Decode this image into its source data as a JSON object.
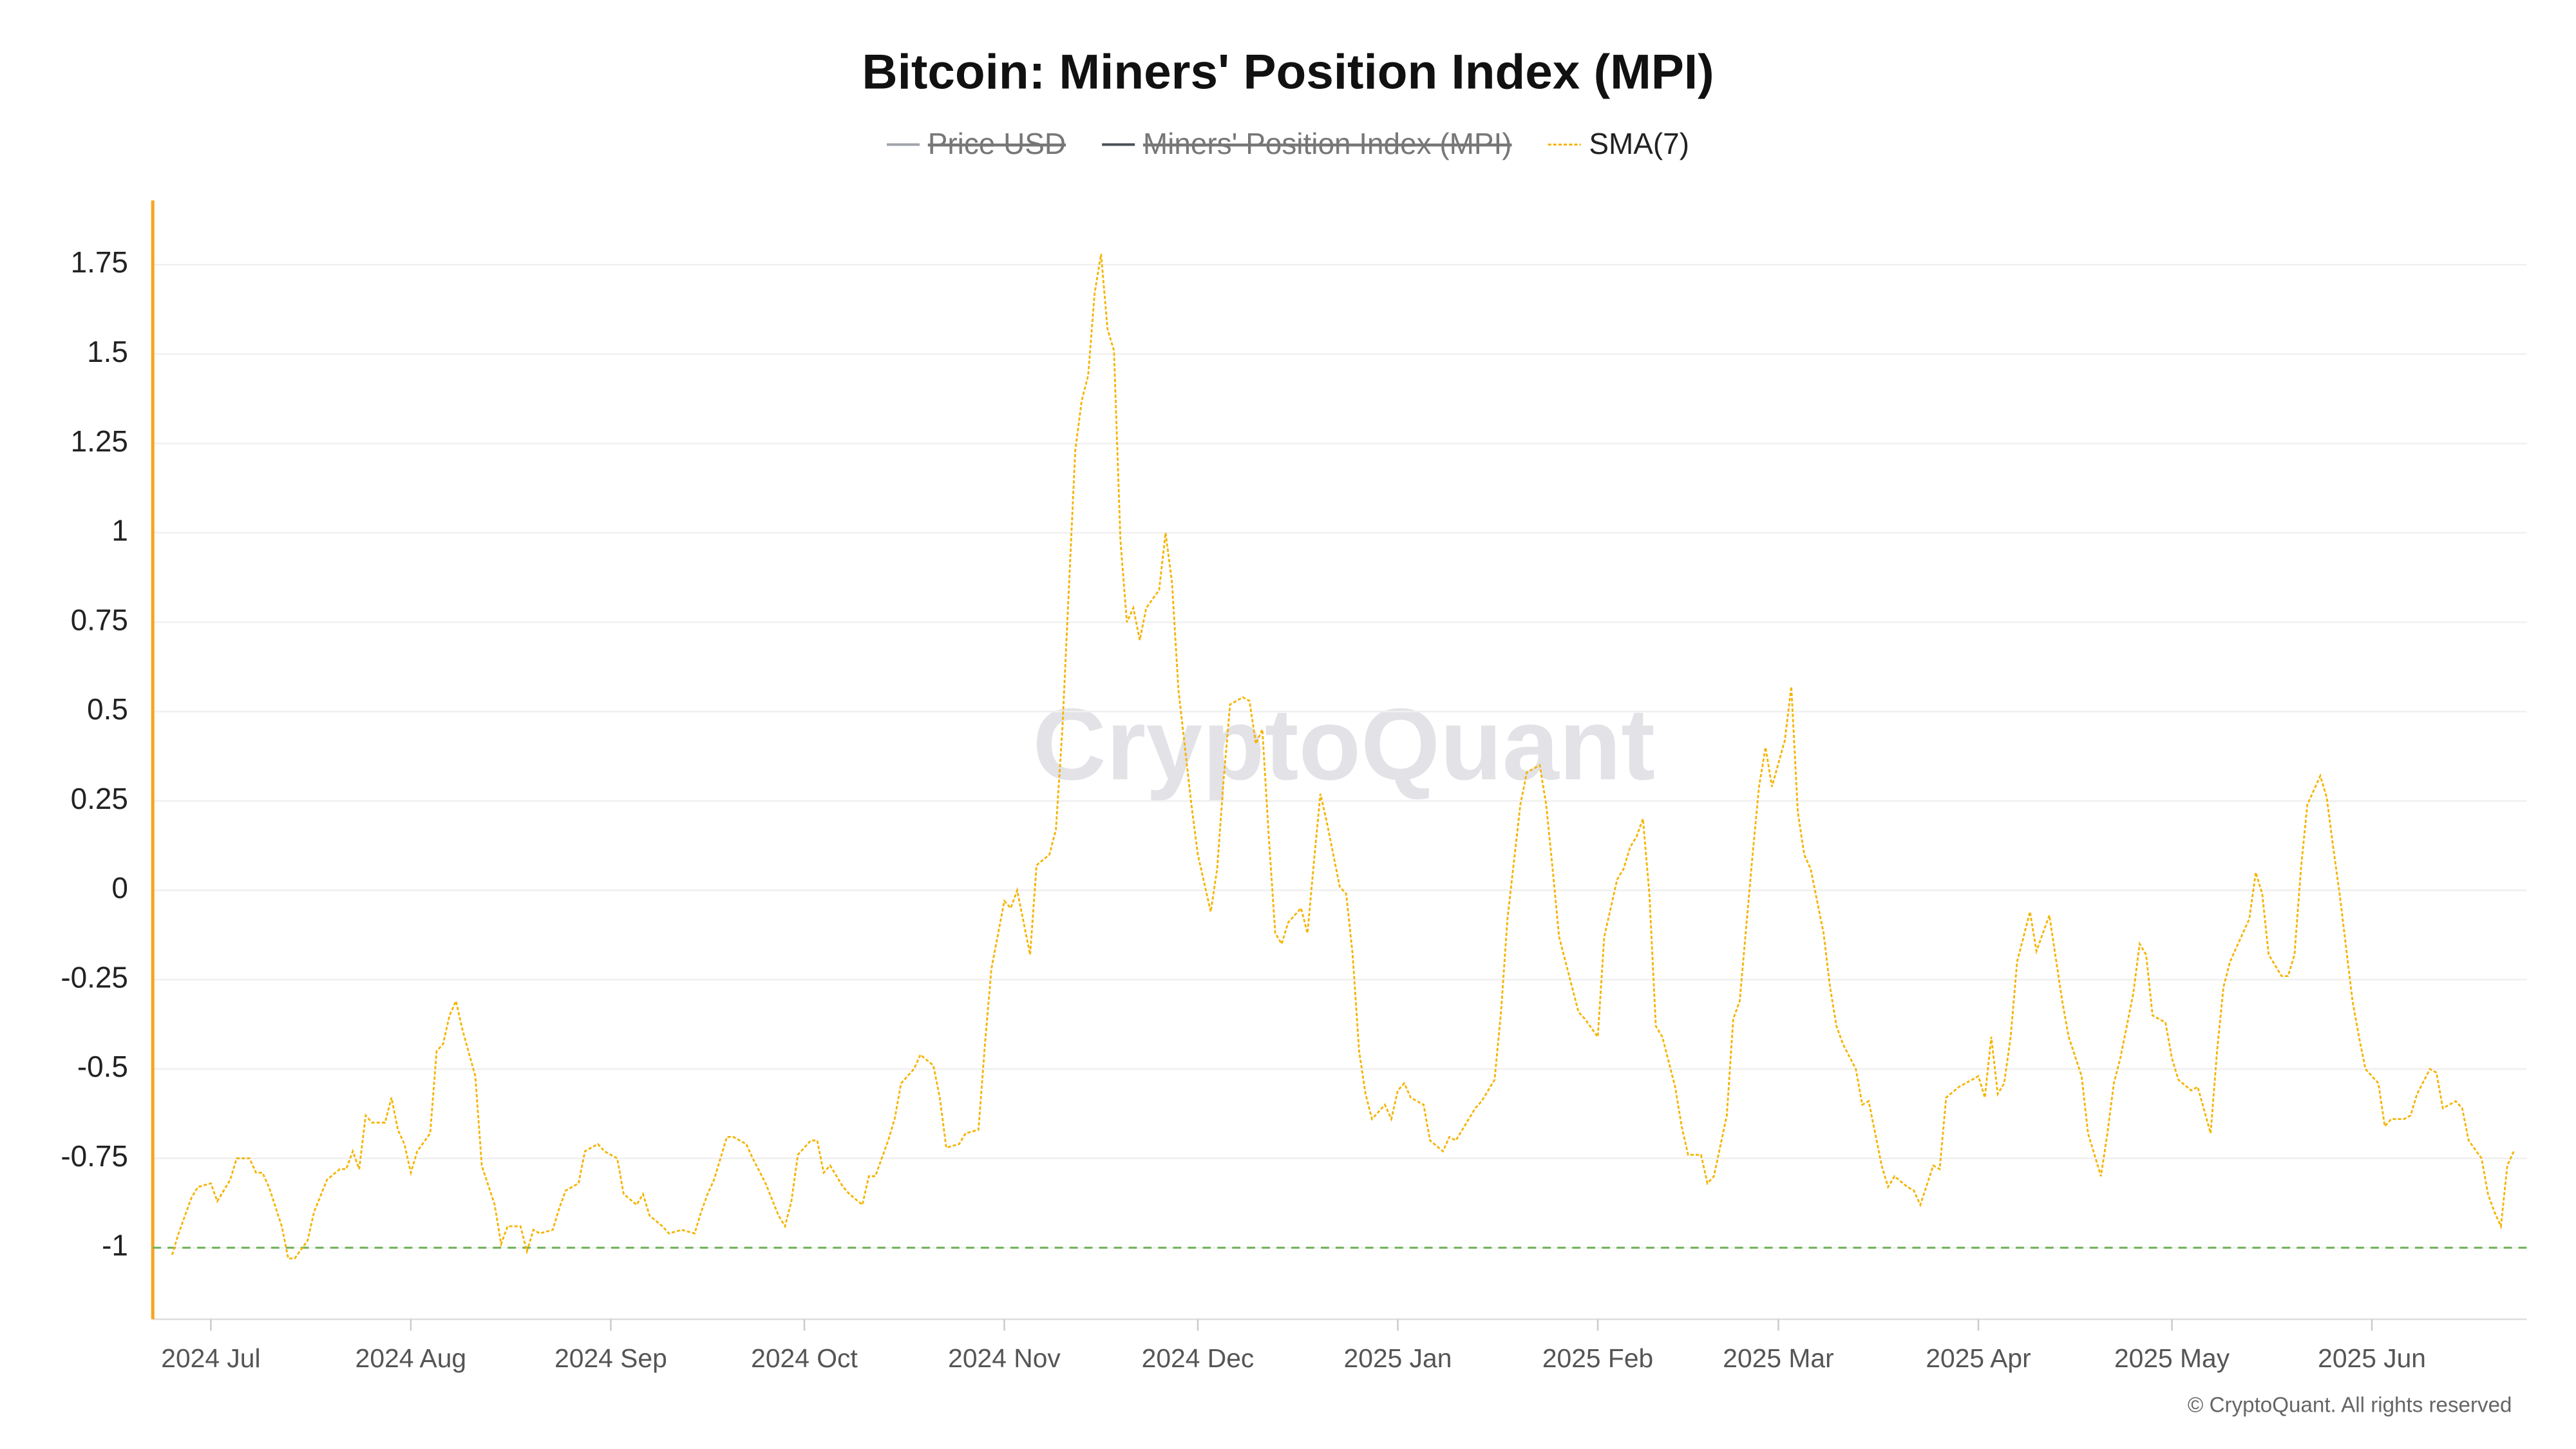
{
  "chart_data": {
    "type": "line",
    "title": "Bitcoin: Miners' Position Index (MPI)",
    "watermark": "CryptoQuant",
    "footer": "© CryptoQuant. All rights reserved",
    "x": [
      -6,
      -5,
      -4,
      -3,
      -2,
      0,
      1,
      3,
      4,
      6,
      7,
      8,
      9,
      11,
      12,
      13,
      15,
      16,
      18,
      20,
      21,
      22,
      23,
      24,
      25,
      27,
      28,
      29,
      30,
      31,
      32,
      34,
      35,
      36,
      37,
      38,
      39,
      41,
      42,
      44,
      45,
      46,
      48,
      49,
      50,
      51,
      53,
      54,
      55,
      57,
      58,
      60,
      61,
      63,
      64,
      66,
      67,
      68,
      70,
      71,
      73,
      75,
      76,
      77,
      78,
      80,
      81,
      83,
      84,
      86,
      88,
      89,
      90,
      91,
      93,
      94,
      95,
      96,
      98,
      99,
      101,
      102,
      103,
      105,
      106,
      107,
      109,
      110,
      112,
      113,
      114,
      116,
      117,
      119,
      120,
      121,
      123,
      124,
      125,
      127,
      128,
      130,
      131,
      132,
      134,
      135,
      136,
      137,
      138,
      139,
      140,
      141,
      142,
      143,
      144,
      145,
      147,
      148,
      149,
      150,
      152,
      153,
      155,
      156,
      157,
      158,
      160,
      161,
      162,
      163,
      164,
      165,
      166,
      167,
      169,
      170,
      171,
      172,
      173,
      175,
      176,
      177,
      178,
      179,
      180,
      182,
      183,
      184,
      185,
      186,
      188,
      189,
      191,
      192,
      193,
      195,
      196,
      197,
      199,
      200,
      201,
      203,
      204,
      206,
      207,
      208,
      209,
      211,
      212,
      213,
      215,
      216,
      218,
      219,
      220,
      221,
      222,
      223,
      224,
      225,
      227,
      228,
      229,
      231,
      232,
      233,
      235,
      236,
      237,
      239,
      240,
      241,
      242,
      244,
      245,
      246,
      247,
      248,
      250,
      251,
      252,
      253,
      255,
      256,
      257,
      259,
      260,
      261,
      263,
      264,
      265,
      267,
      268,
      269,
      271,
      272,
      274,
      275,
      276,
      277,
      278,
      279,
      280,
      282,
      283,
      284,
      285,
      287,
      288,
      290,
      291,
      293,
      294,
      295,
      296,
      298,
      299,
      300,
      301,
      303,
      304,
      305,
      307,
      308,
      310,
      311,
      312,
      313,
      315,
      316,
      317,
      318,
      319,
      321,
      322,
      323,
      324,
      325,
      327,
      328,
      329,
      330,
      332,
      333,
      334,
      336,
      337,
      338,
      340,
      341,
      342,
      344,
      345,
      346,
      348,
      349,
      350,
      352,
      353,
      354,
      355,
      356,
      357
    ],
    "series": [
      {
        "name": "Price USD",
        "color": "#a0a4ab",
        "hidden": true
      },
      {
        "name": "Miners' Position Index (MPI)",
        "color": "#4a4f57",
        "hidden": true
      },
      {
        "name": "SMA(7)",
        "color": "#f5b400",
        "line_style": "dotted",
        "hidden": false,
        "values": [
          -1.02,
          -0.96,
          -0.91,
          -0.86,
          -0.83,
          -0.82,
          -0.87,
          -0.81,
          -0.75,
          -0.75,
          -0.79,
          -0.79,
          -0.83,
          -0.94,
          -1.03,
          -1.03,
          -0.98,
          -0.9,
          -0.81,
          -0.78,
          -0.78,
          -0.73,
          -0.78,
          -0.63,
          -0.65,
          -0.65,
          -0.58,
          -0.67,
          -0.71,
          -0.79,
          -0.73,
          -0.68,
          -0.45,
          -0.43,
          -0.35,
          -0.31,
          -0.39,
          -0.52,
          -0.77,
          -0.88,
          -0.99,
          -0.94,
          -0.94,
          -1.01,
          -0.95,
          -0.96,
          -0.95,
          -0.89,
          -0.84,
          -0.82,
          -0.73,
          -0.71,
          -0.73,
          -0.75,
          -0.85,
          -0.88,
          -0.85,
          -0.91,
          -0.94,
          -0.96,
          -0.95,
          -0.96,
          -0.9,
          -0.85,
          -0.81,
          -0.69,
          -0.69,
          -0.71,
          -0.75,
          -0.82,
          -0.91,
          -0.94,
          -0.87,
          -0.74,
          -0.7,
          -0.7,
          -0.79,
          -0.77,
          -0.83,
          -0.85,
          -0.88,
          -0.8,
          -0.8,
          -0.7,
          -0.64,
          -0.54,
          -0.5,
          -0.46,
          -0.49,
          -0.58,
          -0.72,
          -0.71,
          -0.68,
          -0.67,
          -0.43,
          -0.22,
          -0.03,
          -0.05,
          0.0,
          -0.18,
          0.07,
          0.1,
          0.17,
          0.45,
          1.23,
          1.37,
          1.44,
          1.67,
          1.78,
          1.57,
          1.51,
          0.98,
          0.75,
          0.79,
          0.7,
          0.79,
          0.84,
          1.0,
          0.86,
          0.56,
          0.24,
          0.1,
          -0.06,
          0.06,
          0.31,
          0.52,
          0.54,
          0.53,
          0.41,
          0.45,
          0.15,
          -0.12,
          -0.15,
          -0.09,
          -0.05,
          -0.12,
          0.08,
          0.27,
          0.19,
          0.01,
          -0.01,
          -0.18,
          -0.45,
          -0.57,
          -0.64,
          -0.6,
          -0.64,
          -0.56,
          -0.54,
          -0.58,
          -0.6,
          -0.7,
          -0.73,
          -0.69,
          -0.7,
          -0.64,
          -0.61,
          -0.59,
          -0.53,
          -0.34,
          -0.08,
          0.24,
          0.33,
          0.35,
          0.24,
          0.06,
          -0.13,
          -0.27,
          -0.34,
          -0.36,
          -0.41,
          -0.13,
          0.03,
          0.06,
          0.12,
          0.15,
          0.2,
          -0.01,
          -0.38,
          -0.41,
          -0.55,
          -0.66,
          -0.74,
          -0.74,
          -0.82,
          -0.8,
          -0.63,
          -0.36,
          -0.31,
          0.1,
          0.29,
          0.4,
          0.29,
          0.42,
          0.57,
          0.22,
          0.1,
          0.06,
          -0.12,
          -0.27,
          -0.38,
          -0.43,
          -0.5,
          -0.6,
          -0.59,
          -0.77,
          -0.83,
          -0.8,
          -0.83,
          -0.84,
          -0.88,
          -0.77,
          -0.78,
          -0.58,
          -0.55,
          -0.54,
          -0.52,
          -0.58,
          -0.41,
          -0.57,
          -0.54,
          -0.41,
          -0.2,
          -0.06,
          -0.17,
          -0.12,
          -0.07,
          -0.31,
          -0.41,
          -0.52,
          -0.68,
          -0.8,
          -0.68,
          -0.54,
          -0.47,
          -0.29,
          -0.15,
          -0.18,
          -0.35,
          -0.37,
          -0.47,
          -0.53,
          -0.56,
          -0.55,
          -0.68,
          -0.45,
          -0.27,
          -0.2,
          -0.12,
          -0.08,
          0.05,
          -0.01,
          -0.18,
          -0.24,
          -0.24,
          -0.18,
          0.06,
          0.24,
          0.32,
          0.26,
          0.12,
          -0.01,
          -0.31,
          -0.41,
          -0.5,
          -0.54,
          -0.66,
          -0.64,
          -0.64,
          -0.63,
          -0.57,
          -0.5,
          -0.51,
          -0.61,
          -0.59,
          -0.61,
          -0.7,
          -0.75,
          -0.85,
          -0.9,
          -0.94,
          -0.77,
          -0.73
        ]
      }
    ],
    "xlim": [
      -9,
      359
    ],
    "xticks": [
      {
        "value": 0,
        "label": "2024 Jul"
      },
      {
        "value": 31,
        "label": "2024 Aug"
      },
      {
        "value": 62,
        "label": "2024 Sep"
      },
      {
        "value": 92,
        "label": "2024 Oct"
      },
      {
        "value": 123,
        "label": "2024 Nov"
      },
      {
        "value": 153,
        "label": "2024 Dec"
      },
      {
        "value": 184,
        "label": "2025 Jan"
      },
      {
        "value": 215,
        "label": "2025 Feb"
      },
      {
        "value": 243,
        "label": "2025 Mar"
      },
      {
        "value": 274,
        "label": "2025 Apr"
      },
      {
        "value": 304,
        "label": "2025 May"
      },
      {
        "value": 335,
        "label": "2025 Jun"
      }
    ],
    "ylim": [
      -1.2,
      1.93
    ],
    "yticks": [
      -1,
      -0.75,
      -0.5,
      -0.25,
      0,
      0.25,
      0.5,
      0.75,
      1,
      1.25,
      1.5,
      1.75
    ],
    "grid": true,
    "y_axis_color": "#f5a623",
    "reference_lines": [
      {
        "value": -1,
        "color": "#74b45e"
      }
    ],
    "legend": "top"
  }
}
